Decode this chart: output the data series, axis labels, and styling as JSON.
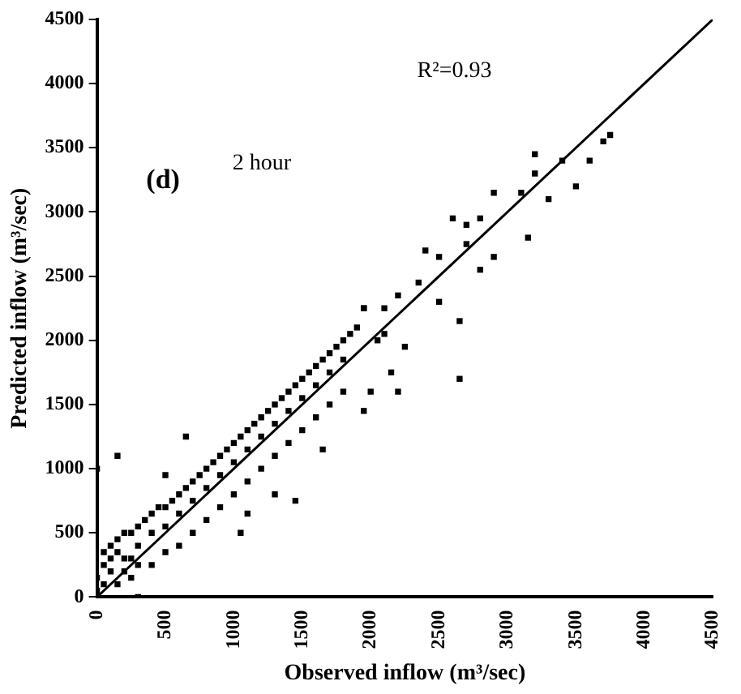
{
  "chart_data": {
    "type": "scatter",
    "xlabel": "Observed inflow (m³/sec)",
    "ylabel": "Predicted inflow (m³/sec)",
    "annotations": [
      "R²=0.93",
      "(d)",
      "2 hour"
    ],
    "xlim": [
      0,
      4500
    ],
    "ylim": [
      0,
      4500
    ],
    "xticks": [
      0,
      500,
      1000,
      1500,
      2000,
      2500,
      3000,
      3500,
      4000,
      4500
    ],
    "yticks": [
      0,
      500,
      1000,
      1500,
      2000,
      2500,
      3000,
      3500,
      4000,
      4500
    ],
    "grid": false,
    "legend": false,
    "marker": "square",
    "series": [
      {
        "color": "#000000",
        "x": [
          0,
          0,
          50,
          50,
          100,
          100,
          150,
          150,
          200,
          200,
          250,
          250,
          300,
          50,
          100,
          150,
          200,
          250,
          300,
          350,
          400,
          450,
          500,
          550,
          600,
          650,
          700,
          750,
          800,
          850,
          900,
          950,
          1000,
          1050,
          1100,
          1150,
          1200,
          1250,
          1300,
          1350,
          1400,
          1450,
          1500,
          1550,
          1600,
          1650,
          1700,
          1750,
          1800,
          1850,
          1900,
          400,
          500,
          600,
          700,
          800,
          900,
          1000,
          1100,
          1200,
          1300,
          1400,
          1500,
          1600,
          1700,
          1800,
          300,
          400,
          500,
          600,
          700,
          800,
          900,
          1000,
          1100,
          1200,
          1300,
          1400,
          1500,
          1600,
          1700,
          1800,
          0,
          150,
          500,
          650,
          1050,
          1300,
          1450,
          1100,
          1650,
          1950,
          2000,
          2200,
          2150,
          2650,
          2650,
          2250,
          1950,
          2100,
          3200,
          3700,
          3750,
          3500,
          3600,
          3400,
          2900,
          3100,
          3300,
          3200,
          2600,
          2700,
          2800,
          2700,
          2900,
          3150,
          2800,
          2400,
          2500,
          2350,
          2200,
          2500,
          1950,
          2050,
          2100,
          300
        ],
        "values": [
          50,
          150,
          250,
          100,
          300,
          200,
          350,
          100,
          300,
          200,
          150,
          300,
          250,
          350,
          400,
          450,
          500,
          500,
          550,
          600,
          650,
          700,
          700,
          750,
          800,
          850,
          900,
          950,
          1000,
          1050,
          1100,
          1150,
          1200,
          1250,
          1300,
          1350,
          1400,
          1450,
          1500,
          1550,
          1600,
          1650,
          1700,
          1750,
          1800,
          1850,
          1900,
          1950,
          2000,
          2050,
          2100,
          250,
          350,
          400,
          500,
          600,
          700,
          800,
          900,
          1000,
          1100,
          1200,
          1300,
          1400,
          1500,
          1600,
          400,
          500,
          550,
          650,
          750,
          850,
          950,
          1050,
          1150,
          1250,
          1350,
          1450,
          1550,
          1650,
          1750,
          1850,
          1000,
          1100,
          950,
          1250,
          500,
          800,
          750,
          650,
          1150,
          1450,
          1600,
          1600,
          1750,
          1700,
          2150,
          1950,
          2250,
          2250,
          3450,
          3550,
          3600,
          3200,
          3400,
          3400,
          3150,
          3150,
          3100,
          3300,
          2950,
          2900,
          2950,
          2750,
          2650,
          2800,
          2550,
          2700,
          2650,
          2450,
          2350,
          2300,
          2250,
          2000,
          2050,
          0
        ]
      },
      {
        "type": "line",
        "color": "#000000",
        "marker": "none",
        "x": [
          0,
          4500
        ],
        "values": [
          0,
          4500
        ]
      }
    ]
  }
}
